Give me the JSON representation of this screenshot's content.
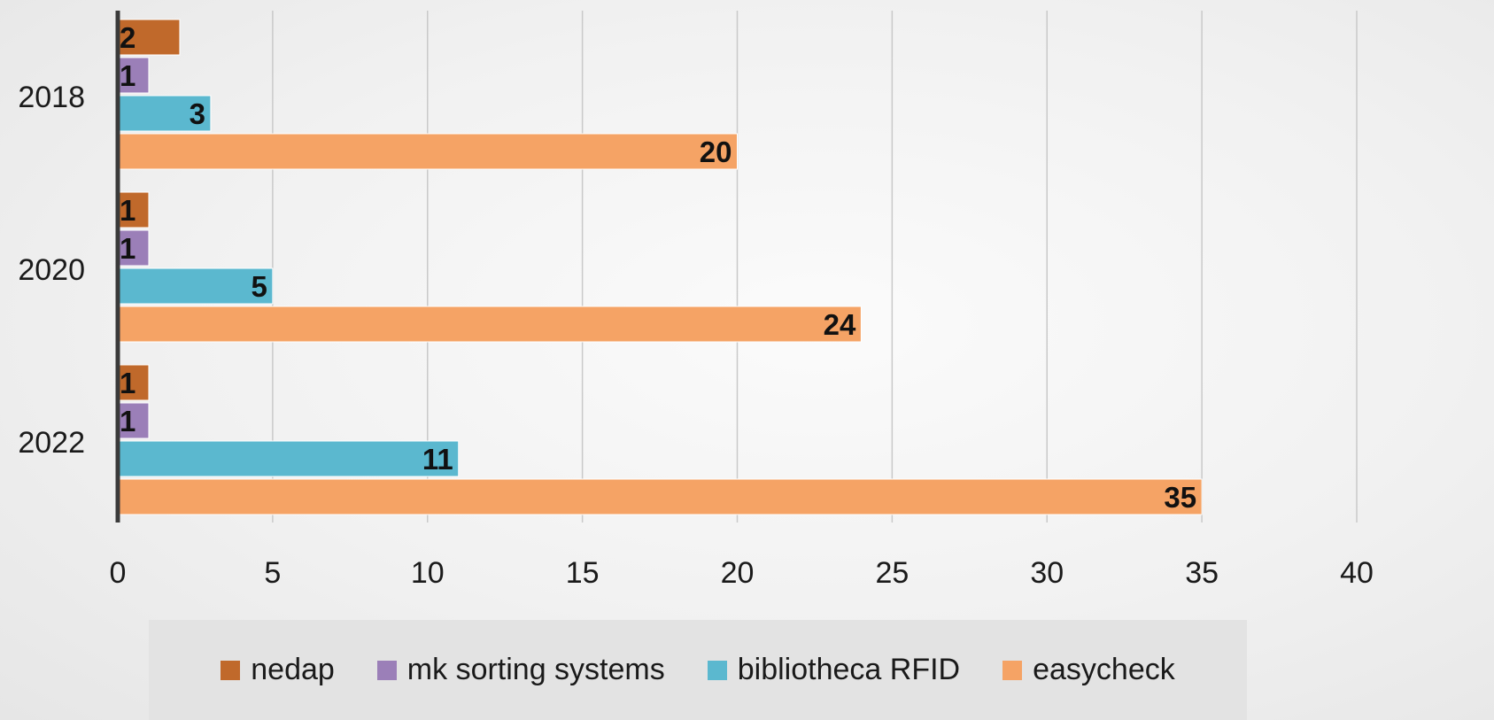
{
  "chart_data": {
    "type": "bar",
    "orientation": "horizontal",
    "categories": [
      "2018",
      "2020",
      "2022"
    ],
    "series": [
      {
        "name": "nedap",
        "color": "#c0692b",
        "values": [
          2,
          1,
          1
        ]
      },
      {
        "name": "mk sorting systems",
        "color": "#9b7fb8",
        "values": [
          1,
          1,
          1
        ]
      },
      {
        "name": "bibliotheca RFID",
        "color": "#5bb8cf",
        "values": [
          3,
          5,
          11
        ]
      },
      {
        "name": "easycheck",
        "color": "#f5a365",
        "values": [
          20,
          24,
          35
        ]
      }
    ],
    "title": "",
    "xlabel": "",
    "ylabel": "",
    "xlim": [
      0,
      40
    ],
    "xticks": [
      "0",
      "5",
      "10",
      "15",
      "20",
      "25",
      "30",
      "35",
      "40"
    ],
    "grid": true,
    "data_labels": true,
    "legend_position": "bottom"
  }
}
